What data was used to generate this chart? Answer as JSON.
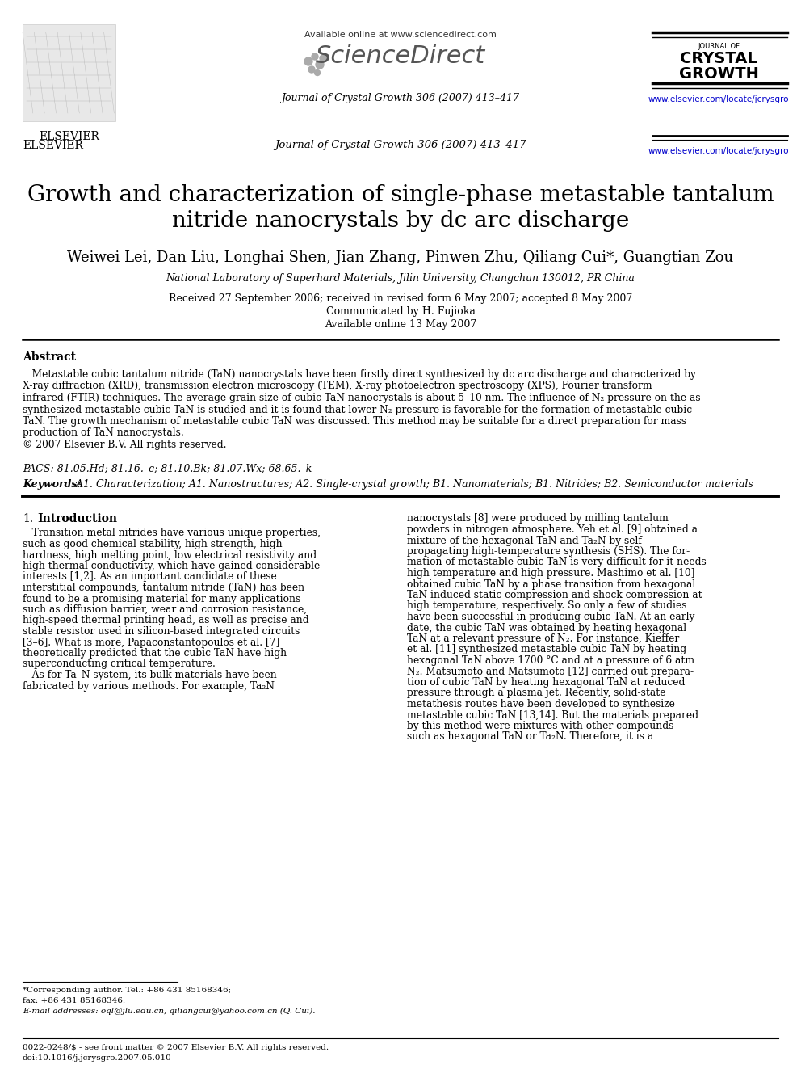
{
  "bg_color": "#ffffff",
  "title_line1": "Growth and characterization of single-phase metastable tantalum",
  "title_line2": "nitride nanocrystals by dc arc discharge",
  "authors": "Weiwei Lei, Dan Liu, Longhai Shen, Jian Zhang, Pinwen Zhu, Qiliang Cui*, Guangtian Zou",
  "affiliation": "National Laboratory of Superhard Materials, Jilin University, Changchun 130012, PR China",
  "received": "Received 27 September 2006; received in revised form 6 May 2007; accepted 8 May 2007",
  "communicated": "Communicated by H. Fujioka",
  "available": "Available online 13 May 2007",
  "header_available": "Available online at www.sciencedirect.com",
  "journal_info": "Journal of Crystal Growth 306 (2007) 413–417",
  "journal_name_small": "JOURNAL OF",
  "journal_name_big1": "CRYSTAL",
  "journal_name_big2": "GROWTH",
  "url": "www.elsevier.com/locate/jcrysgro",
  "elsevier_text": "ELSEVIER",
  "abstract_title": "Abstract",
  "pacs_text": "PACS: 81.05.Hd; 81.16.–c; 81.10.Bk; 81.07.Wx; 68.65.–k",
  "keywords_label": "Keywords:",
  "keywords_rest": " A1. Characterization; A1. Nanostructures; A2. Single-crystal growth; B1. Nanomaterials; B1. Nitrides; B2. Semiconductor materials",
  "section1_num": "1.",
  "section1_name": "Introduction",
  "footnote_star": "*Corresponding author. Tel.: +86 431 85168346;",
  "footnote_fax": "fax: +86 431 85168346.",
  "footnote_email": "E-mail addresses: oql@jlu.edu.cn, qiliangcui@yahoo.com.cn (Q. Cui).",
  "footer_left": "0022-0248/$ - see front matter © 2007 Elsevier B.V. All rights reserved.",
  "footer_doi": "doi:10.1016/j.jcrysgro.2007.05.010",
  "abstract_lines": [
    "   Metastable cubic tantalum nitride (TaN) nanocrystals have been firstly direct synthesized by dc arc discharge and characterized by",
    "X-ray diffraction (XRD), transmission electron microscopy (TEM), X-ray photoelectron spectroscopy (XPS), Fourier transform",
    "infrared (FTIR) techniques. The average grain size of cubic TaN nanocrystals is about 5–10 nm. The influence of N₂ pressure on the as-",
    "synthesized metastable cubic TaN is studied and it is found that lower N₂ pressure is favorable for the formation of metastable cubic",
    "TaN. The growth mechanism of metastable cubic TaN was discussed. This method may be suitable for a direct preparation for mass",
    "production of TaN nanocrystals.",
    "© 2007 Elsevier B.V. All rights reserved."
  ],
  "col1_lines": [
    "   Transition metal nitrides have various unique properties,",
    "such as good chemical stability, high strength, high",
    "hardness, high melting point, low electrical resistivity and",
    "high thermal conductivity, which have gained considerable",
    "interests [1,2]. As an important candidate of these",
    "interstitial compounds, tantalum nitride (TaN) has been",
    "found to be a promising material for many applications",
    "such as diffusion barrier, wear and corrosion resistance,",
    "high-speed thermal printing head, as well as precise and",
    "stable resistor used in silicon-based integrated circuits",
    "[3–6]. What is more, Papaconstantopoulos et al. [7]",
    "theoretically predicted that the cubic TaN have high",
    "superconducting critical temperature.",
    "   As for Ta–N system, its bulk materials have been",
    "fabricated by various methods. For example, Ta₂N"
  ],
  "col2_lines": [
    "nanocrystals [8] were produced by milling tantalum",
    "powders in nitrogen atmosphere. Yeh et al. [9] obtained a",
    "mixture of the hexagonal TaN and Ta₂N by self-",
    "propagating high-temperature synthesis (SHS). The for-",
    "mation of metastable cubic TaN is very difficult for it needs",
    "high temperature and high pressure. Mashimo et al. [10]",
    "obtained cubic TaN by a phase transition from hexagonal",
    "TaN induced static compression and shock compression at",
    "high temperature, respectively. So only a few of studies",
    "have been successful in producing cubic TaN. At an early",
    "date, the cubic TaN was obtained by heating hexagonal",
    "TaN at a relevant pressure of N₂. For instance, Kieffer",
    "et al. [11] synthesized metastable cubic TaN by heating",
    "hexagonal TaN above 1700 °C and at a pressure of 6 atm",
    "N₂. Matsumoto and Matsumoto [12] carried out prepara-",
    "tion of cubic TaN by heating hexagonal TaN at reduced",
    "pressure through a plasma jet. Recently, solid-state",
    "metathesis routes have been developed to synthesize",
    "metastable cubic TaN [13,14]. But the materials prepared",
    "by this method were mixtures with other compounds",
    "such as hexagonal TaN or Ta₂N. Therefore, it is a"
  ]
}
